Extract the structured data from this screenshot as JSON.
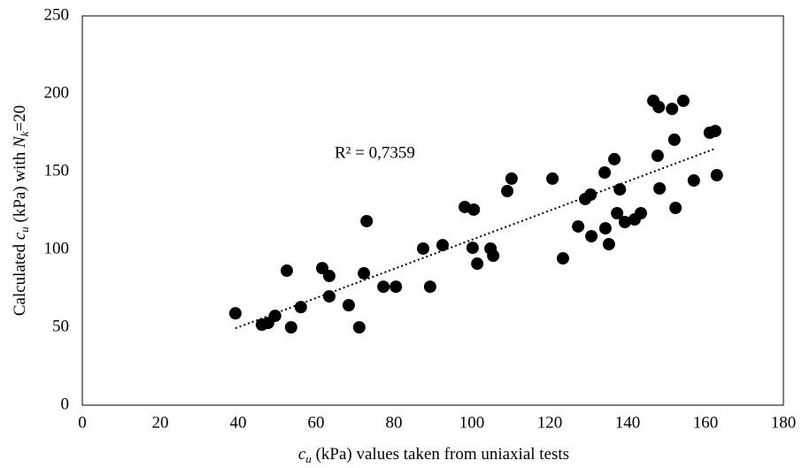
{
  "chart_data": {
    "type": "scatter",
    "x_label_parts": [
      "c",
      "u",
      " (kPa) values taken from uniaxial tests"
    ],
    "y_label_parts": [
      "Calculated ",
      "c",
      "u",
      " (kPa) with ",
      "N",
      "k",
      "=20"
    ],
    "annotation": "R² = 0,7359",
    "color": "#000000",
    "xlim": [
      0,
      180
    ],
    "xticks": [
      0,
      20,
      40,
      60,
      80,
      100,
      120,
      140,
      160,
      180
    ],
    "ylim": [
      0,
      250
    ],
    "yticks": [
      0,
      50,
      100,
      150,
      200,
      250
    ],
    "grid": false,
    "x": [
      39.3,
      46.1,
      47.7,
      49.5,
      52.5,
      53.6,
      56.1,
      61.6,
      63.4,
      63.4,
      68.4,
      71.1,
      72.3,
      73.0,
      77.3,
      80.5,
      87.5,
      89.3,
      92.5,
      98.2,
      100.5,
      100.2,
      101.4,
      104.8,
      105.5,
      109.1,
      110.2,
      120.7,
      123.4,
      127.3,
      129.1,
      130.5,
      130.7,
      134.1,
      134.3,
      135.2,
      136.6,
      137.3,
      138.0,
      139.3,
      141.8,
      143.4,
      146.6,
      147.7,
      148.0,
      148.2,
      151.4,
      152.0,
      152.3,
      154.3,
      157.0,
      161.1,
      162.5,
      162.9
    ],
    "values": [
      59,
      51.7,
      52.8,
      57.4,
      86.4,
      50,
      63,
      88,
      83,
      69.9,
      64.2,
      50,
      84.7,
      118.2,
      76.1,
      76.1,
      100.6,
      76.1,
      102.8,
      127.3,
      125.6,
      101.1,
      90.9,
      100.6,
      96,
      137.5,
      145.5,
      145.5,
      94.3,
      114.8,
      132.4,
      135.2,
      108.5,
      149.4,
      113.6,
      103.4,
      158,
      123.3,
      138.6,
      117.6,
      119.3,
      123.3,
      195.5,
      160.2,
      191.5,
      139.2,
      190.3,
      170.5,
      126.7,
      195.5,
      144.3,
      175,
      176.1,
      147.7
    ],
    "trendline": {
      "x": [
        39.3,
        162.5
      ],
      "values": [
        49.4,
        164.8
      ]
    }
  }
}
